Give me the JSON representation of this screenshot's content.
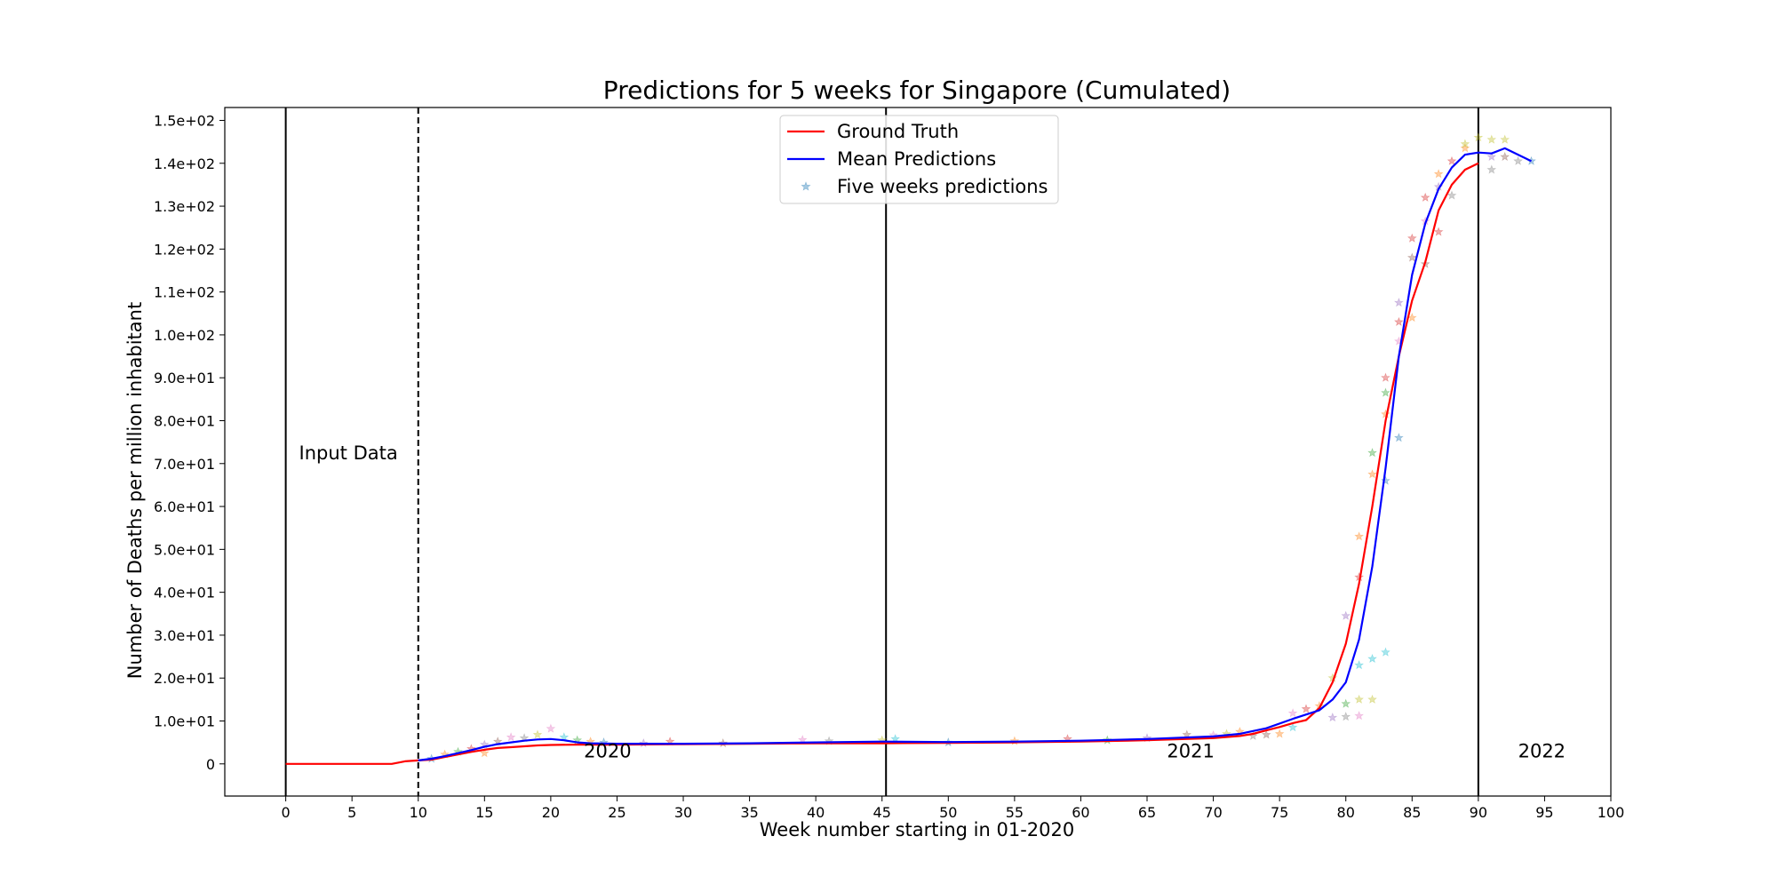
{
  "chart_data": {
    "type": "line",
    "title": "Predictions for 5 weeks for Singapore (Cumulated)",
    "xlabel": "Week number starting in 01-2020",
    "ylabel": "Number of Deaths per million inhabitant",
    "xlim": [
      -4.6,
      100
    ],
    "ylim": [
      -7.5,
      153
    ],
    "x_ticks": [
      0,
      5,
      10,
      15,
      20,
      25,
      30,
      35,
      40,
      45,
      50,
      55,
      60,
      65,
      70,
      75,
      80,
      85,
      90,
      95,
      100
    ],
    "x_tick_labels": [
      "0",
      "5",
      "10",
      "15",
      "20",
      "25",
      "30",
      "35",
      "40",
      "45",
      "50",
      "55",
      "60",
      "65",
      "70",
      "75",
      "80",
      "85",
      "90",
      "95",
      "100"
    ],
    "y_ticks": [
      0,
      10,
      20,
      30,
      40,
      50,
      60,
      70,
      80,
      90,
      100,
      110,
      120,
      130,
      140,
      150
    ],
    "y_tick_labels": [
      "0",
      "1.0e+01",
      "2.0e+01",
      "3.0e+01",
      "4.0e+01",
      "5.0e+01",
      "6.0e+01",
      "7.0e+01",
      "8.0e+01",
      "9.0e+01",
      "1.0e+02",
      "1.1e+02",
      "1.2e+02",
      "1.3e+02",
      "1.4e+02",
      "1.5e+02"
    ],
    "grid": false,
    "legend_position": "top-center",
    "legend": [
      "Ground Truth",
      "Mean Predictions",
      "Five weeks predictions"
    ],
    "annotations": [
      {
        "text": "Input Data",
        "x": 1,
        "y": 71
      },
      {
        "text": "2020",
        "x": 22.5,
        "y": 1.5
      },
      {
        "text": "2021",
        "x": 66.5,
        "y": 1.5
      },
      {
        "text": "2022",
        "x": 93,
        "y": 1.5
      }
    ],
    "vertical_lines": [
      {
        "x": 0,
        "style": "solid"
      },
      {
        "x": 10,
        "style": "dashed"
      },
      {
        "x": 45.3,
        "style": "solid"
      },
      {
        "x": 90,
        "style": "solid"
      }
    ],
    "series": [
      {
        "name": "Ground Truth",
        "color": "#ff0000",
        "x": [
          0,
          2,
          4,
          6,
          8,
          9,
          10,
          11,
          12,
          13,
          14,
          15,
          16,
          17,
          18,
          19,
          20,
          22,
          25,
          30,
          35,
          40,
          45,
          50,
          55,
          60,
          65,
          70,
          72,
          73,
          74,
          75,
          76,
          77,
          78,
          79,
          80,
          81,
          82,
          83,
          84,
          85,
          86,
          87,
          88,
          89,
          90
        ],
        "y": [
          0,
          0,
          0,
          0,
          0,
          0.6,
          0.8,
          1.0,
          1.6,
          2.2,
          2.8,
          3.3,
          3.7,
          3.9,
          4.1,
          4.3,
          4.4,
          4.5,
          4.5,
          4.6,
          4.7,
          4.8,
          4.8,
          4.9,
          5.0,
          5.2,
          5.5,
          6.0,
          6.5,
          7.0,
          7.8,
          8.6,
          9.5,
          10.2,
          13,
          19,
          28,
          42,
          60,
          80,
          95,
          108,
          117,
          129,
          135,
          138.5,
          140
        ]
      },
      {
        "name": "Mean Predictions",
        "color": "#0000ff",
        "x": [
          10,
          11,
          12,
          13,
          14,
          15,
          16,
          17,
          18,
          19,
          20,
          21,
          22,
          23,
          25,
          30,
          35,
          40,
          45,
          50,
          55,
          60,
          65,
          70,
          72,
          74,
          76,
          78,
          79,
          80,
          81,
          82,
          83,
          84,
          85,
          86,
          87,
          88,
          89,
          90,
          91,
          92,
          93,
          94
        ],
        "y": [
          0.8,
          1.2,
          1.8,
          2.5,
          3.2,
          4.0,
          4.6,
          5.0,
          5.4,
          5.7,
          5.8,
          5.5,
          5.0,
          4.8,
          4.7,
          4.7,
          4.8,
          5.0,
          5.2,
          5.1,
          5.2,
          5.4,
          5.8,
          6.4,
          7.0,
          8.3,
          10.5,
          12.5,
          15,
          19,
          29,
          46,
          69,
          95,
          114,
          126,
          134,
          139,
          142,
          142.5,
          142.3,
          143.5,
          142,
          140.5
        ]
      }
    ],
    "scatter": {
      "name": "Five weeks predictions",
      "marker": "star",
      "points": [
        [
          11,
          1.2,
          "#1f77b4"
        ],
        [
          12,
          2.2,
          "#ff7f0e"
        ],
        [
          13,
          2.8,
          "#2ca02c"
        ],
        [
          14,
          3.5,
          "#d62728"
        ],
        [
          15,
          2.5,
          "#ff7f0e"
        ],
        [
          15,
          4.5,
          "#9467bd"
        ],
        [
          16,
          5.2,
          "#8c564b"
        ],
        [
          17,
          6.2,
          "#e377c2"
        ],
        [
          18,
          6.0,
          "#7f7f7f"
        ],
        [
          19,
          6.8,
          "#bcbd22"
        ],
        [
          20,
          8.2,
          "#e377c2"
        ],
        [
          21,
          6.2,
          "#17becf"
        ],
        [
          22,
          5.5,
          "#2ca02c"
        ],
        [
          23,
          5.2,
          "#ff7f0e"
        ],
        [
          24,
          5.0,
          "#1f77b4"
        ],
        [
          27,
          4.8,
          "#9467bd"
        ],
        [
          29,
          5.2,
          "#d62728"
        ],
        [
          33,
          4.8,
          "#8c564b"
        ],
        [
          39,
          5.6,
          "#e377c2"
        ],
        [
          41,
          5.3,
          "#7f7f7f"
        ],
        [
          45,
          5.5,
          "#bcbd22"
        ],
        [
          46,
          5.8,
          "#17becf"
        ],
        [
          50,
          5.0,
          "#1f77b4"
        ],
        [
          55,
          5.3,
          "#ff7f0e"
        ],
        [
          59,
          5.8,
          "#d62728"
        ],
        [
          62,
          5.5,
          "#2ca02c"
        ],
        [
          65,
          6.0,
          "#9467bd"
        ],
        [
          68,
          6.8,
          "#8c564b"
        ],
        [
          70,
          6.7,
          "#e377c2"
        ],
        [
          71,
          7.0,
          "#bcbd22"
        ],
        [
          72,
          7.5,
          "#ff7f0e"
        ],
        [
          73,
          6.5,
          "#7f7f7f"
        ],
        [
          74,
          6.8,
          "#8c564b"
        ],
        [
          75,
          7.0,
          "#ff7f0e"
        ],
        [
          76,
          8.5,
          "#17becf"
        ],
        [
          76,
          11.8,
          "#e377c2"
        ],
        [
          77,
          12.8,
          "#d62728"
        ],
        [
          78,
          13.5,
          "#ff7f0e"
        ],
        [
          79,
          10.8,
          "#9467bd"
        ],
        [
          79,
          20.0,
          "#bcbd22"
        ],
        [
          80,
          11.0,
          "#7f7f7f"
        ],
        [
          80,
          14.0,
          "#2ca02c"
        ],
        [
          80,
          34.5,
          "#9467bd"
        ],
        [
          81,
          11.2,
          "#e377c2"
        ],
        [
          81,
          15.0,
          "#bcbd22"
        ],
        [
          81,
          23.0,
          "#17becf"
        ],
        [
          81,
          43.5,
          "#d62728"
        ],
        [
          81,
          53.0,
          "#ff7f0e"
        ],
        [
          82,
          15.0,
          "#bcbd22"
        ],
        [
          82,
          24.5,
          "#17becf"
        ],
        [
          82,
          67.5,
          "#ff7f0e"
        ],
        [
          82,
          72.5,
          "#2ca02c"
        ],
        [
          83,
          26.0,
          "#17becf"
        ],
        [
          83,
          66.0,
          "#1f77b4"
        ],
        [
          83,
          81.5,
          "#ff7f0e"
        ],
        [
          83,
          86.5,
          "#2ca02c"
        ],
        [
          83,
          90.0,
          "#d62728"
        ],
        [
          84,
          76.0,
          "#1f77b4"
        ],
        [
          84,
          98.5,
          "#e377c2"
        ],
        [
          84,
          103.0,
          "#d62728"
        ],
        [
          84,
          107.5,
          "#9467bd"
        ],
        [
          85,
          104.0,
          "#ff7f0e"
        ],
        [
          85,
          118.0,
          "#8c564b"
        ],
        [
          85,
          122.5,
          "#d62728"
        ],
        [
          86,
          116.5,
          "#8c564b"
        ],
        [
          86,
          126.5,
          "#e377c2"
        ],
        [
          86,
          132.0,
          "#d62728"
        ],
        [
          87,
          124.0,
          "#d62728"
        ],
        [
          87,
          134.5,
          "#9467bd"
        ],
        [
          87,
          137.5,
          "#ff7f0e"
        ],
        [
          88,
          132.5,
          "#7f7f7f"
        ],
        [
          88,
          140.5,
          "#d62728"
        ],
        [
          89,
          143.5,
          "#ff7f0e"
        ],
        [
          89,
          144.5,
          "#bcbd22"
        ],
        [
          90,
          146.0,
          "#bcbd22"
        ],
        [
          91,
          138.5,
          "#7f7f7f"
        ],
        [
          91,
          141.5,
          "#9467bd"
        ],
        [
          91,
          145.5,
          "#bcbd22"
        ],
        [
          92,
          141.5,
          "#8c564b"
        ],
        [
          92,
          145.5,
          "#bcbd22"
        ],
        [
          93,
          140.5,
          "#7f7f7f"
        ],
        [
          94,
          140.5,
          "#1f77b4"
        ]
      ]
    }
  }
}
